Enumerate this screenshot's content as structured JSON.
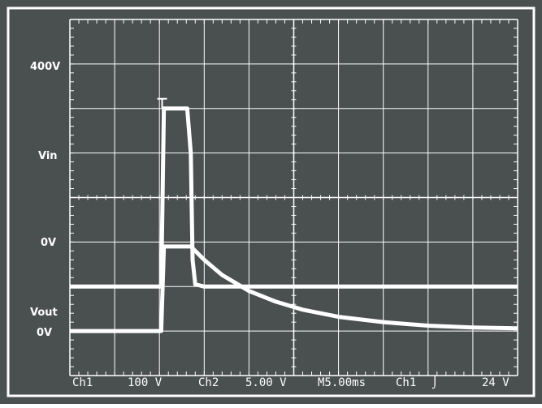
{
  "colors": {
    "screen": "#4a4f4f",
    "border": "#ffffff",
    "grid": "#ffffff",
    "trace": "#ffffff"
  },
  "labels": {
    "v400": "400V",
    "vin": "Vin",
    "v0_ch1": "0V",
    "vout": "Vout",
    "v0_ch2": "0V"
  },
  "status": {
    "ch1": "Ch1",
    "ch1_scale": "100 V",
    "ch2": "Ch2",
    "ch2_scale": "5.00 V",
    "timebase": "M5.00ms",
    "trigger_source": "Ch1",
    "trigger_slope": "⌡",
    "trigger_level": "24 V"
  },
  "chart_data": {
    "type": "line",
    "divisions": {
      "x": 10,
      "y": 8
    },
    "time_per_div_ms": 5,
    "x_unit": "ms",
    "series": [
      {
        "name": "Vin",
        "scale": "100 V/div",
        "points": [
          [
            0,
            0
          ],
          [
            10.2,
            0
          ],
          [
            10.5,
            400
          ],
          [
            13.1,
            400
          ],
          [
            13.5,
            300
          ],
          [
            13.7,
            60
          ],
          [
            14.0,
            5
          ],
          [
            15.0,
            0
          ],
          [
            50,
            0
          ]
        ]
      },
      {
        "name": "Vout",
        "scale": "5.00 V/div",
        "points": [
          [
            0,
            0
          ],
          [
            10.2,
            0
          ],
          [
            10.5,
            9.5
          ],
          [
            13.5,
            9.5
          ],
          [
            15,
            8
          ],
          [
            17,
            6.3
          ],
          [
            20,
            4.5
          ],
          [
            23,
            3.3
          ],
          [
            26,
            2.4
          ],
          [
            30,
            1.6
          ],
          [
            35,
            1
          ],
          [
            40,
            0.6
          ],
          [
            45,
            0.4
          ],
          [
            50,
            0.3
          ]
        ]
      }
    ]
  }
}
